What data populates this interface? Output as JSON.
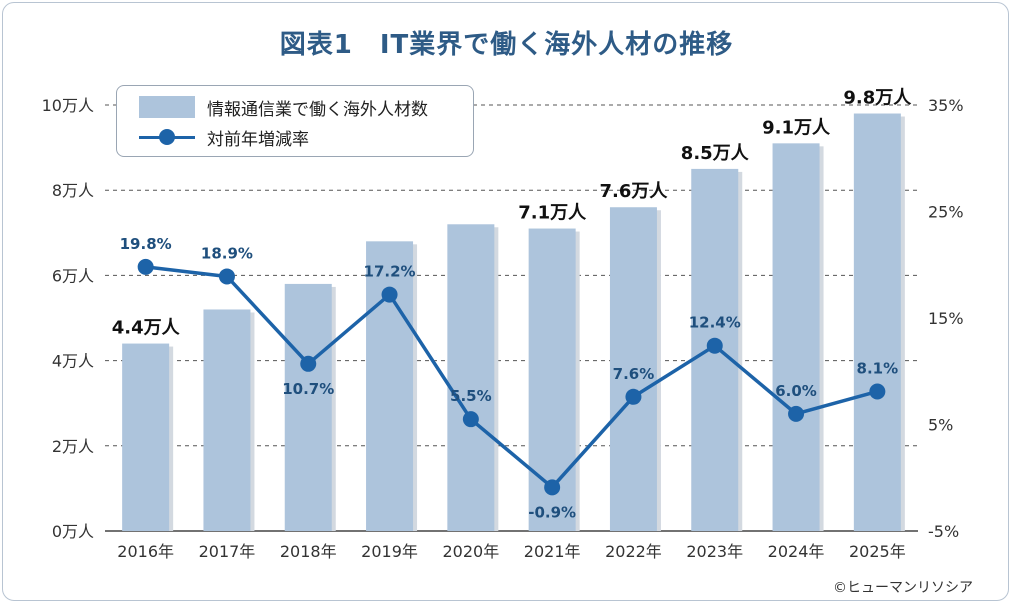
{
  "chart_data": {
    "type": "bar",
    "title": "図表1　IT業界で働く海外人材の推移",
    "categories": [
      "2016年",
      "2017年",
      "2018年",
      "2019年",
      "2020年",
      "2021年",
      "2022年",
      "2023年",
      "2024年",
      "2025年"
    ],
    "series": [
      {
        "name": "情報通信業で働く海外人材数",
        "type": "bar",
        "axis": "left",
        "unit": "万人",
        "values": [
          4.4,
          5.2,
          5.8,
          6.8,
          7.2,
          7.1,
          7.6,
          8.5,
          9.1,
          9.8
        ],
        "labels": [
          "4.4万人",
          "",
          "",
          "",
          "",
          "7.1万人",
          "7.6万人",
          "8.5万人",
          "9.1万人",
          "9.8万人"
        ]
      },
      {
        "name": "対前年増減率",
        "type": "line",
        "axis": "right",
        "unit": "%",
        "values": [
          19.8,
          18.9,
          10.7,
          17.2,
          5.5,
          -0.9,
          7.6,
          12.4,
          6.0,
          8.1
        ],
        "labels": [
          "19.8%",
          "18.9%",
          "10.7%",
          "17.2%",
          "5.5%",
          "-0.9%",
          "7.6%",
          "12.4%",
          "6.0%",
          "8.1%"
        ]
      }
    ],
    "y_left": {
      "min": 0,
      "max": 10,
      "ticks": [
        "0万人",
        "2万人",
        "4万人",
        "6万人",
        "8万人",
        "10万人"
      ],
      "values": [
        0,
        2,
        4,
        6,
        8,
        10
      ]
    },
    "y_right": {
      "min": -5,
      "max": 35,
      "ticks": [
        "-5%",
        "5%",
        "15%",
        "25%",
        "35%"
      ],
      "values": [
        -5,
        5,
        15,
        25,
        35
      ]
    },
    "grid": true,
    "legend": "top-left",
    "colors": {
      "bar": "#adc4dc",
      "line": "#1d63a8",
      "negative_label": "#e0324b",
      "title": "#2e5b86"
    }
  },
  "legend": {
    "bar_label": "情報通信業で働く海外人材数",
    "line_label": "対前年増減率"
  },
  "copyright": "©ヒューマンリソシア"
}
